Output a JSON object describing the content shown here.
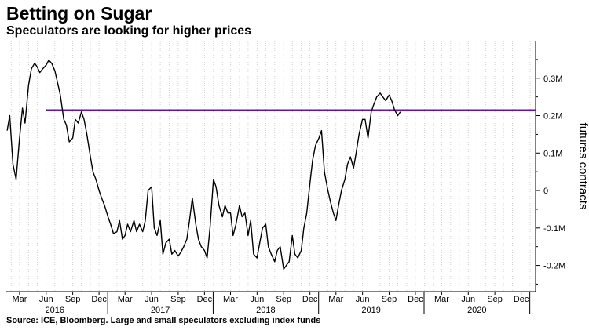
{
  "header": {
    "title": "Betting on Sugar",
    "subtitle": "Speculators are looking for higher prices"
  },
  "footer": {
    "source": "Source: ICE, Bloomberg. Large and small speculators excluding index funds"
  },
  "chart_data": {
    "type": "line",
    "title": "Betting on Sugar",
    "subtitle": "Speculators are looking for higher prices",
    "ylabel": "futures contracts",
    "ylim": [
      -270000,
      400000
    ],
    "xlim": [
      "2016-01-15",
      "2021-01-20"
    ],
    "grid": "vertical dotted (monthly)",
    "y_axis_position": "right",
    "y_ticks": [
      {
        "value": 300000,
        "label": "0.3M"
      },
      {
        "value": 200000,
        "label": "0.2M"
      },
      {
        "value": 100000,
        "label": "0.1M"
      },
      {
        "value": 0,
        "label": "0"
      },
      {
        "value": -100000,
        "label": "-0.1M"
      },
      {
        "value": -200000,
        "label": "-0.2M"
      }
    ],
    "x_month_ticks": [
      "Mar",
      "Jun",
      "Sep",
      "Dec",
      "Mar",
      "Jun",
      "Sep",
      "Dec",
      "Mar",
      "Jun",
      "Sep",
      "Dec",
      "Mar",
      "Jun",
      "Sep",
      "Dec",
      "Mar",
      "Jun",
      "Sep",
      "Dec"
    ],
    "x_month_tick_dates": [
      "2016-03-01",
      "2016-06-01",
      "2016-09-01",
      "2016-12-01",
      "2017-03-01",
      "2017-06-01",
      "2017-09-01",
      "2017-12-01",
      "2018-03-01",
      "2018-06-01",
      "2018-09-01",
      "2018-12-01",
      "2019-03-01",
      "2019-06-01",
      "2019-09-01",
      "2019-12-01",
      "2020-03-01",
      "2020-06-01",
      "2020-09-01",
      "2020-12-01"
    ],
    "x_year_labels": [
      {
        "label": "2016",
        "center": "2016-07-01"
      },
      {
        "label": "2017",
        "center": "2017-07-01"
      },
      {
        "label": "2018",
        "center": "2018-07-01"
      },
      {
        "label": "2019",
        "center": "2019-07-01"
      },
      {
        "label": "2020",
        "center": "2020-07-01"
      }
    ],
    "reference_line": {
      "value": 215000,
      "start": "2016-06-01",
      "end": "2021-01-20",
      "color": "#6a0dad"
    },
    "series": [
      {
        "color": "#000000",
        "points": [
          [
            "2016-01-18",
            160000
          ],
          [
            "2016-01-27",
            200000
          ],
          [
            "2016-02-07",
            70000
          ],
          [
            "2016-02-18",
            30000
          ],
          [
            "2016-03-01",
            140000
          ],
          [
            "2016-03-11",
            220000
          ],
          [
            "2016-03-20",
            180000
          ],
          [
            "2016-04-01",
            280000
          ],
          [
            "2016-04-11",
            325000
          ],
          [
            "2016-04-22",
            340000
          ],
          [
            "2016-05-01",
            330000
          ],
          [
            "2016-05-10",
            315000
          ],
          [
            "2016-05-20",
            325000
          ],
          [
            "2016-06-01",
            335000
          ],
          [
            "2016-06-10",
            348000
          ],
          [
            "2016-06-20",
            340000
          ],
          [
            "2016-07-01",
            320000
          ],
          [
            "2016-07-10",
            290000
          ],
          [
            "2016-07-20",
            255000
          ],
          [
            "2016-08-01",
            190000
          ],
          [
            "2016-08-10",
            175000
          ],
          [
            "2016-08-20",
            130000
          ],
          [
            "2016-09-01",
            140000
          ],
          [
            "2016-09-10",
            190000
          ],
          [
            "2016-09-20",
            180000
          ],
          [
            "2016-10-01",
            210000
          ],
          [
            "2016-10-10",
            190000
          ],
          [
            "2016-10-20",
            150000
          ],
          [
            "2016-11-01",
            90000
          ],
          [
            "2016-11-10",
            50000
          ],
          [
            "2016-11-20",
            30000
          ],
          [
            "2016-12-01",
            0
          ],
          [
            "2016-12-10",
            -20000
          ],
          [
            "2016-12-20",
            -40000
          ],
          [
            "2017-01-01",
            -70000
          ],
          [
            "2017-01-10",
            -90000
          ],
          [
            "2017-01-20",
            -115000
          ],
          [
            "2017-02-01",
            -110000
          ],
          [
            "2017-02-10",
            -80000
          ],
          [
            "2017-02-20",
            -130000
          ],
          [
            "2017-03-01",
            -120000
          ],
          [
            "2017-03-10",
            -90000
          ],
          [
            "2017-03-20",
            -110000
          ],
          [
            "2017-04-01",
            -80000
          ],
          [
            "2017-04-10",
            -110000
          ],
          [
            "2017-04-20",
            -90000
          ],
          [
            "2017-05-01",
            -110000
          ],
          [
            "2017-05-10",
            -80000
          ],
          [
            "2017-05-20",
            0
          ],
          [
            "2017-06-01",
            10000
          ],
          [
            "2017-06-10",
            -100000
          ],
          [
            "2017-06-20",
            -120000
          ],
          [
            "2017-07-01",
            -80000
          ],
          [
            "2017-07-10",
            -170000
          ],
          [
            "2017-07-20",
            -140000
          ],
          [
            "2017-08-01",
            -130000
          ],
          [
            "2017-08-10",
            -170000
          ],
          [
            "2017-08-20",
            -160000
          ],
          [
            "2017-09-01",
            -175000
          ],
          [
            "2017-09-10",
            -165000
          ],
          [
            "2017-09-20",
            -150000
          ],
          [
            "2017-10-01",
            -130000
          ],
          [
            "2017-10-10",
            -80000
          ],
          [
            "2017-10-20",
            -20000
          ],
          [
            "2017-11-01",
            -90000
          ],
          [
            "2017-11-10",
            -130000
          ],
          [
            "2017-11-20",
            -150000
          ],
          [
            "2017-12-01",
            -160000
          ],
          [
            "2017-12-10",
            -180000
          ],
          [
            "2017-12-20",
            -100000
          ],
          [
            "2018-01-01",
            30000
          ],
          [
            "2018-01-10",
            10000
          ],
          [
            "2018-01-20",
            -40000
          ],
          [
            "2018-02-01",
            -70000
          ],
          [
            "2018-02-10",
            -40000
          ],
          [
            "2018-02-20",
            -60000
          ],
          [
            "2018-03-01",
            -60000
          ],
          [
            "2018-03-10",
            -120000
          ],
          [
            "2018-03-20",
            -90000
          ],
          [
            "2018-04-01",
            -40000
          ],
          [
            "2018-04-10",
            -70000
          ],
          [
            "2018-04-20",
            -60000
          ],
          [
            "2018-05-01",
            -120000
          ],
          [
            "2018-05-10",
            -80000
          ],
          [
            "2018-05-20",
            -170000
          ],
          [
            "2018-06-01",
            -180000
          ],
          [
            "2018-06-10",
            -140000
          ],
          [
            "2018-06-20",
            -100000
          ],
          [
            "2018-07-01",
            -90000
          ],
          [
            "2018-07-10",
            -150000
          ],
          [
            "2018-07-20",
            -170000
          ],
          [
            "2018-08-01",
            -190000
          ],
          [
            "2018-08-10",
            -160000
          ],
          [
            "2018-08-20",
            -150000
          ],
          [
            "2018-09-01",
            -210000
          ],
          [
            "2018-09-10",
            -200000
          ],
          [
            "2018-09-20",
            -190000
          ],
          [
            "2018-10-01",
            -120000
          ],
          [
            "2018-10-10",
            -170000
          ],
          [
            "2018-10-20",
            -180000
          ],
          [
            "2018-11-01",
            -160000
          ],
          [
            "2018-11-10",
            -100000
          ],
          [
            "2018-11-20",
            -60000
          ],
          [
            "2018-12-01",
            20000
          ],
          [
            "2018-12-10",
            80000
          ],
          [
            "2018-12-20",
            120000
          ],
          [
            "2019-01-01",
            140000
          ],
          [
            "2019-01-10",
            160000
          ],
          [
            "2019-01-20",
            50000
          ],
          [
            "2019-02-01",
            0
          ],
          [
            "2019-02-10",
            -30000
          ],
          [
            "2019-02-20",
            -60000
          ],
          [
            "2019-03-01",
            -80000
          ],
          [
            "2019-03-10",
            -40000
          ],
          [
            "2019-03-20",
            0
          ],
          [
            "2019-04-01",
            30000
          ],
          [
            "2019-04-10",
            70000
          ],
          [
            "2019-04-20",
            90000
          ],
          [
            "2019-05-01",
            60000
          ],
          [
            "2019-05-10",
            100000
          ],
          [
            "2019-05-20",
            150000
          ],
          [
            "2019-06-01",
            190000
          ],
          [
            "2019-06-10",
            190000
          ],
          [
            "2019-06-20",
            140000
          ],
          [
            "2019-07-01",
            210000
          ],
          [
            "2019-07-10",
            230000
          ],
          [
            "2019-07-20",
            250000
          ],
          [
            "2019-08-01",
            260000
          ],
          [
            "2019-08-10",
            250000
          ],
          [
            "2019-08-20",
            240000
          ],
          [
            "2019-09-01",
            255000
          ],
          [
            "2019-09-10",
            240000
          ],
          [
            "2019-09-20",
            215000
          ],
          [
            "2019-10-01",
            200000
          ],
          [
            "2019-10-10",
            210000
          ]
        ]
      }
    ]
  }
}
